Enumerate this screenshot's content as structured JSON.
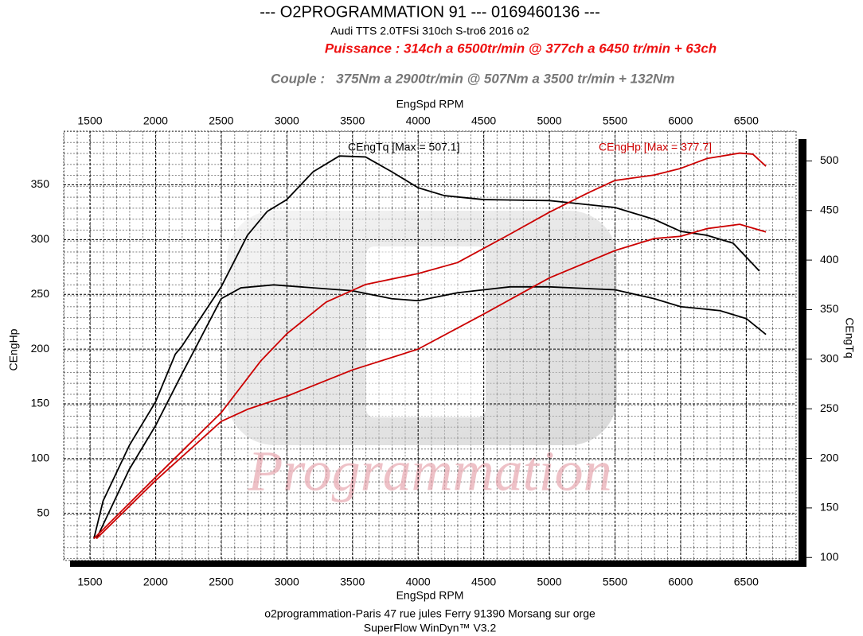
{
  "chart_data": {
    "type": "line",
    "title": "--- O2PROGRAMMATION 91 --- 0169460136 ---",
    "subtitle": "Audi TTS 2.0TFSi 310ch S-tro6 2016 o2",
    "annotations": [
      "Puissance : 314ch a 6500tr/min @ 377ch a 6450 tr/min + 63ch",
      "Couple :   375Nm a 2900tr/min @ 507Nm a 3500 tr/min + 132Nm"
    ],
    "watermark": "Programmation",
    "footer": [
      "o2programmation-Paris 47 rue jules Ferry 91390 Morsang sur orge",
      "SuperFlow WinDyn™ V3.2"
    ],
    "x_label": "EngSpd RPM",
    "y_label": "CEngHp",
    "y2_label": "CEngTq",
    "xlim": [
      1300,
      6880
    ],
    "xticks": [
      1500,
      2000,
      2500,
      3000,
      3500,
      4000,
      4500,
      5000,
      5500,
      6000,
      6500
    ],
    "ylim": [
      7,
      399
    ],
    "yticks": [
      50,
      100,
      150,
      200,
      250,
      300,
      350
    ],
    "y2lim": [
      97,
      530
    ],
    "y2ticks": [
      100,
      150,
      200,
      250,
      300,
      350,
      400,
      450,
      500
    ],
    "grid": true,
    "series": [
      {
        "name": "CEngTq [Max = 507.1]",
        "color": "#000000",
        "axis": "y2",
        "x": [
          1530,
          1600,
          1800,
          2000,
          2150,
          2200,
          2500,
          2700,
          2850,
          3000,
          3200,
          3400,
          3600,
          3800,
          4000,
          4200,
          4500,
          5000,
          5500,
          5800,
          6000,
          6200,
          6400,
          6600
        ],
        "values": [
          119,
          157,
          213,
          257,
          305,
          313,
          373,
          425,
          449,
          461,
          489,
          505,
          504,
          489,
          473,
          465,
          461,
          460,
          453,
          441,
          429,
          425,
          417,
          389
        ]
      },
      {
        "color": "#000000",
        "axis": "y2",
        "x": [
          1550,
          1800,
          2000,
          2200,
          2500,
          2650,
          2900,
          3500,
          3800,
          4000,
          4300,
          4700,
          5000,
          5500,
          5800,
          6000,
          6300,
          6500,
          6650
        ],
        "values": [
          119,
          189,
          233,
          285,
          361,
          372,
          375,
          369,
          361,
          359,
          367,
          373,
          373,
          370,
          361,
          353,
          349,
          341,
          325
        ]
      },
      {
        "name": "CEngHp [Max = 377.7]",
        "color": "#cc0000",
        "axis": "y",
        "x": [
          1530,
          2000,
          2500,
          2800,
          3000,
          3300,
          3600,
          4000,
          4300,
          4700,
          5000,
          5300,
          5500,
          5800,
          6000,
          6200,
          6450,
          6550,
          6650
        ],
        "values": [
          27,
          83,
          142,
          189,
          214,
          243,
          259,
          269,
          279,
          305,
          325,
          343,
          354,
          359,
          365,
          374,
          379,
          378,
          367
        ]
      },
      {
        "color": "#cc0000",
        "axis": "y",
        "x": [
          1550,
          2000,
          2500,
          2700,
          3000,
          3500,
          4000,
          4500,
          5000,
          5500,
          5800,
          6000,
          6200,
          6450,
          6650
        ],
        "values": [
          27,
          80,
          134,
          145,
          157,
          181,
          200,
          232,
          265,
          290,
          301,
          303,
          310,
          314,
          307
        ]
      }
    ]
  }
}
